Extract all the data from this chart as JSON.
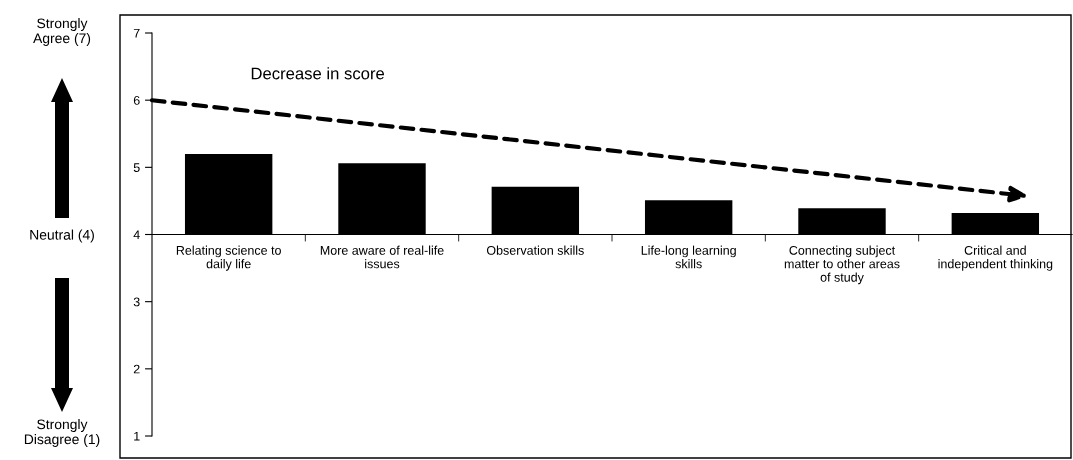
{
  "chart_data": {
    "type": "bar",
    "categories": [
      "Relating science to daily life",
      "More aware of real-life issues",
      "Observation skills",
      "Life-long learning skills",
      "Connecting subject matter to other areas of study",
      "Critical and independent thinking"
    ],
    "base": [
      4,
      4,
      4,
      4,
      4,
      4
    ],
    "values": [
      1.2,
      1.06,
      0.71,
      0.51,
      0.39,
      0.32
    ],
    "color": "#000000",
    "ylim": [
      1,
      7
    ],
    "yticks": [
      1,
      2,
      3,
      4,
      5,
      6,
      7
    ],
    "annotations": [
      "Decrease in score",
      "Strongly Agree (7)",
      "Neutral (4)",
      "Strongly Disagree (1)"
    ]
  }
}
